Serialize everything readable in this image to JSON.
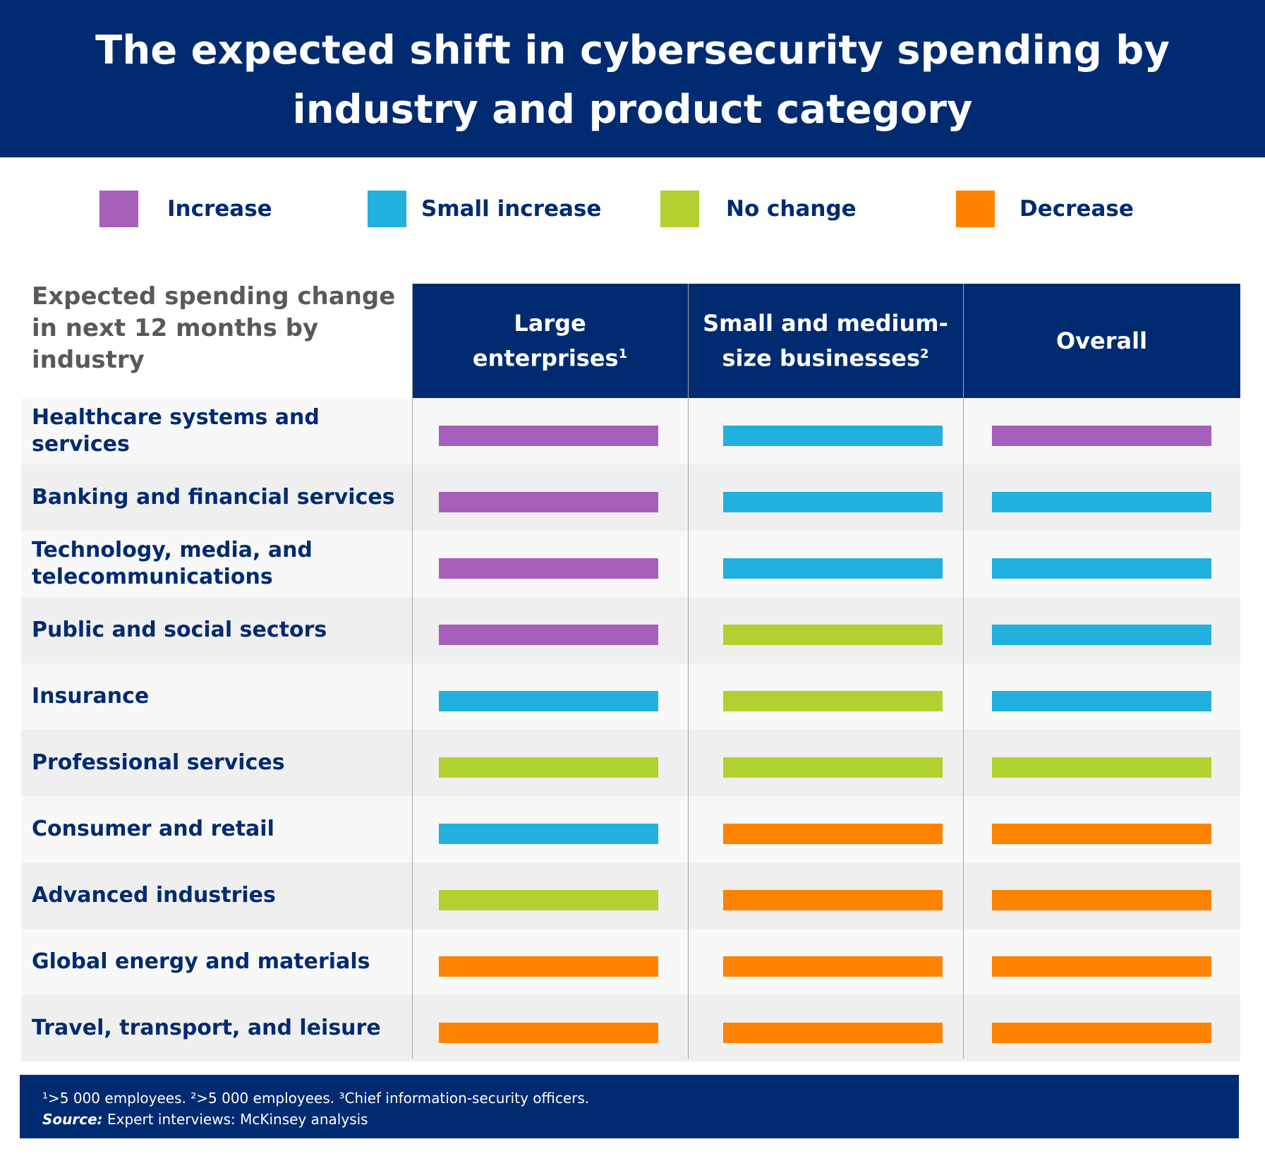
{
  "title": [
    "The expected shift in cybersecurity spending by",
    "industry and product category"
  ],
  "colors": {
    "Increase": "#a75fbc",
    "Small increase": "#22b0de",
    "No change": "#b0d12f",
    "Decrease": "#ff8200",
    "navy": "#002b71"
  },
  "legend": [
    {
      "label": "Increase",
      "color": "#a75fbc"
    },
    {
      "label": "Small increase",
      "color": "#22b0de"
    },
    {
      "label": "No change",
      "color": "#b0d12f"
    },
    {
      "label": "Decrease",
      "color": "#ff8200"
    }
  ],
  "row_header": "Expected spending change in next 12 months by industry",
  "columns": [
    {
      "label": "Large enterprises",
      "footnote": "1"
    },
    {
      "label": "Small and medium-size businesses",
      "footnote": "2"
    },
    {
      "label": "Overall",
      "footnote": ""
    }
  ],
  "chart_data": {
    "type": "table",
    "categories": [
      "Healthcare systems and services",
      "Banking and financial services",
      "Technology, media, and telecommunications",
      "Public and social sectors",
      "Insurance",
      "Professional services",
      "Consumer and retail",
      "Advanced industries",
      "Global energy and materials",
      "Travel, transport, and leisure"
    ],
    "series": [
      {
        "name": "Large enterprises",
        "values": [
          "Increase",
          "Increase",
          "Increase",
          "Increase",
          "Small increase",
          "No change",
          "Small increase",
          "No change",
          "Decrease",
          "Decrease"
        ]
      },
      {
        "name": "Small and medium-size businesses",
        "values": [
          "Small increase",
          "Small increase",
          "Small increase",
          "No change",
          "No change",
          "No change",
          "Decrease",
          "Decrease",
          "Decrease",
          "Decrease"
        ]
      },
      {
        "name": "Overall",
        "values": [
          "Increase",
          "Small increase",
          "Small increase",
          "Small increase",
          "Small increase",
          "No change",
          "Decrease",
          "Decrease",
          "Decrease",
          "Decrease"
        ]
      }
    ]
  },
  "footnotes": "¹>5 000 employees. ²>5 000 employees. ³Chief information-security officers.",
  "source_label": "Source:",
  "source_text": " Expert interviews: McKinsey analysis"
}
